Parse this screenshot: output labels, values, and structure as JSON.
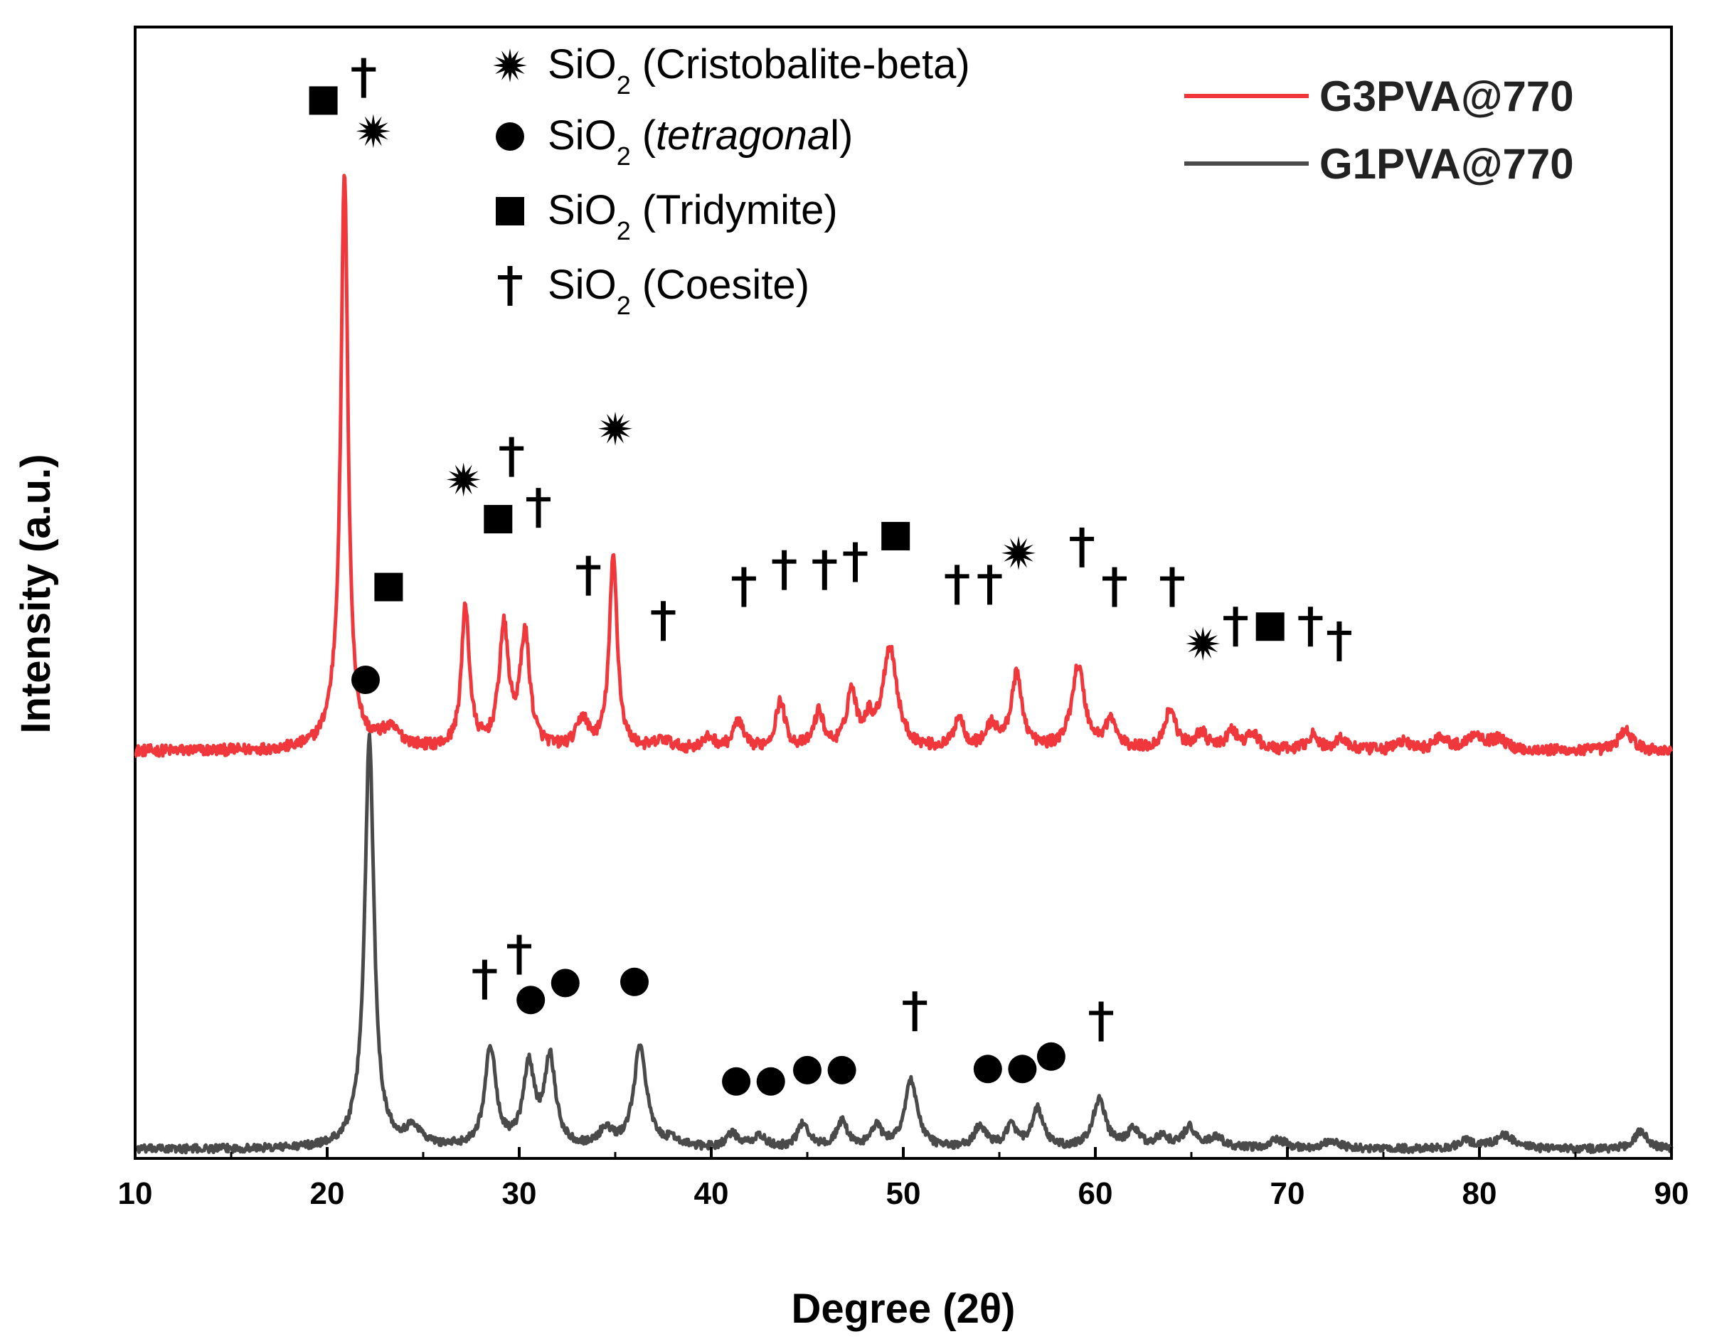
{
  "chart_data": {
    "type": "line",
    "xlabel": "Degree (2θ)",
    "ylabel": "Intensity (a.u.)",
    "xlim": [
      10,
      90
    ],
    "xticks": [
      10,
      20,
      30,
      40,
      50,
      60,
      70,
      80,
      90
    ],
    "ylim": [
      0,
      100
    ],
    "yticks_shown": false,
    "series": [
      {
        "name": "G3PVA@770",
        "color": "#f0383c",
        "baseline": 36.0,
        "noise": 0.5,
        "peaks": [
          {
            "x": 20.9,
            "h": 49.5,
            "w": 0.22
          },
          {
            "x": 20.5,
            "h": 2.5,
            "w": 0.6
          },
          {
            "x": 23.3,
            "h": 1.6,
            "w": 0.7
          },
          {
            "x": 27.2,
            "h": 12.5,
            "w": 0.25
          },
          {
            "x": 29.2,
            "h": 10.5,
            "w": 0.3
          },
          {
            "x": 30.3,
            "h": 10.0,
            "w": 0.3
          },
          {
            "x": 33.3,
            "h": 2.6,
            "w": 0.35
          },
          {
            "x": 34.9,
            "h": 17.0,
            "w": 0.25
          },
          {
            "x": 37.5,
            "h": 0.8,
            "w": 0.5
          },
          {
            "x": 39.9,
            "h": 1.0,
            "w": 0.4
          },
          {
            "x": 41.4,
            "h": 2.5,
            "w": 0.3
          },
          {
            "x": 43.6,
            "h": 4.2,
            "w": 0.3
          },
          {
            "x": 45.6,
            "h": 3.2,
            "w": 0.3
          },
          {
            "x": 47.3,
            "h": 5.0,
            "w": 0.3
          },
          {
            "x": 48.2,
            "h": 2.0,
            "w": 0.3
          },
          {
            "x": 49.3,
            "h": 9.0,
            "w": 0.45
          },
          {
            "x": 52.9,
            "h": 2.8,
            "w": 0.3
          },
          {
            "x": 54.6,
            "h": 2.0,
            "w": 0.35
          },
          {
            "x": 55.9,
            "h": 6.5,
            "w": 0.35
          },
          {
            "x": 59.1,
            "h": 7.4,
            "w": 0.4
          },
          {
            "x": 60.8,
            "h": 2.5,
            "w": 0.35
          },
          {
            "x": 63.9,
            "h": 3.6,
            "w": 0.35
          },
          {
            "x": 65.5,
            "h": 1.5,
            "w": 0.35
          },
          {
            "x": 67.1,
            "h": 1.6,
            "w": 0.35
          },
          {
            "x": 68.2,
            "h": 1.4,
            "w": 0.35
          },
          {
            "x": 71.3,
            "h": 1.3,
            "w": 0.35
          },
          {
            "x": 72.8,
            "h": 1.1,
            "w": 0.35
          },
          {
            "x": 76.0,
            "h": 0.8,
            "w": 0.4
          },
          {
            "x": 78.0,
            "h": 1.2,
            "w": 0.4
          },
          {
            "x": 79.8,
            "h": 1.4,
            "w": 0.5
          },
          {
            "x": 81.0,
            "h": 0.9,
            "w": 0.5
          },
          {
            "x": 87.6,
            "h": 1.9,
            "w": 0.4
          }
        ]
      },
      {
        "name": "G1PVA@770",
        "color": "#4a4a4a",
        "baseline": 0.8,
        "noise": 0.35,
        "peaks": [
          {
            "x": 22.2,
            "h": 34.5,
            "w": 0.28
          },
          {
            "x": 22.0,
            "h": 2.0,
            "w": 0.7
          },
          {
            "x": 24.5,
            "h": 1.6,
            "w": 0.5
          },
          {
            "x": 28.5,
            "h": 8.8,
            "w": 0.35
          },
          {
            "x": 30.5,
            "h": 7.0,
            "w": 0.35
          },
          {
            "x": 31.6,
            "h": 7.8,
            "w": 0.35
          },
          {
            "x": 34.5,
            "h": 1.5,
            "w": 0.4
          },
          {
            "x": 36.3,
            "h": 9.0,
            "w": 0.4
          },
          {
            "x": 38.0,
            "h": 0.6,
            "w": 0.5
          },
          {
            "x": 41.1,
            "h": 1.2,
            "w": 0.4
          },
          {
            "x": 42.5,
            "h": 1.0,
            "w": 0.4
          },
          {
            "x": 44.8,
            "h": 2.2,
            "w": 0.35
          },
          {
            "x": 46.8,
            "h": 2.3,
            "w": 0.35
          },
          {
            "x": 48.6,
            "h": 1.8,
            "w": 0.35
          },
          {
            "x": 50.4,
            "h": 6.0,
            "w": 0.4
          },
          {
            "x": 54.0,
            "h": 2.0,
            "w": 0.35
          },
          {
            "x": 55.6,
            "h": 1.9,
            "w": 0.35
          },
          {
            "x": 57.0,
            "h": 3.4,
            "w": 0.35
          },
          {
            "x": 60.2,
            "h": 4.3,
            "w": 0.4
          },
          {
            "x": 62.0,
            "h": 1.6,
            "w": 0.4
          },
          {
            "x": 63.5,
            "h": 1.0,
            "w": 0.4
          },
          {
            "x": 64.9,
            "h": 1.8,
            "w": 0.4
          },
          {
            "x": 66.3,
            "h": 1.0,
            "w": 0.4
          },
          {
            "x": 69.5,
            "h": 0.8,
            "w": 0.5
          },
          {
            "x": 72.3,
            "h": 0.7,
            "w": 0.5
          },
          {
            "x": 79.3,
            "h": 0.7,
            "w": 0.5
          },
          {
            "x": 81.3,
            "h": 1.2,
            "w": 0.6
          },
          {
            "x": 88.4,
            "h": 1.6,
            "w": 0.4
          }
        ]
      }
    ],
    "phases": [
      {
        "symbol": "star",
        "glyph": "✸",
        "label_main": "SiO",
        "label_sub": "2",
        "label_name": "(Cristobalite-beta)"
      },
      {
        "symbol": "circle",
        "glyph": "●",
        "label_main": "SiO",
        "label_sub": "2",
        "label_pre": "(",
        "label_italic": "tetragona",
        "label_post": "l)"
      },
      {
        "symbol": "square",
        "glyph": "■",
        "label_main": "SiO",
        "label_sub": "2",
        "label_name": "(Tridymite)"
      },
      {
        "symbol": "dagger",
        "glyph": "†",
        "label_main": "SiO",
        "label_sub": "2",
        "label_name": "(Coesite)"
      }
    ],
    "peak_markers": [
      {
        "symbol": "square",
        "x": 19.8,
        "y": 93.5
      },
      {
        "symbol": "dagger",
        "x": 21.9,
        "y": 95.5
      },
      {
        "symbol": "star",
        "x": 22.4,
        "y": 90.8
      },
      {
        "symbol": "square",
        "x": 23.2,
        "y": 50.5
      },
      {
        "symbol": "star",
        "x": 27.1,
        "y": 60.0
      },
      {
        "symbol": "dagger",
        "x": 29.6,
        "y": 62.0
      },
      {
        "symbol": "square",
        "x": 28.9,
        "y": 56.5
      },
      {
        "symbol": "dagger",
        "x": 31.0,
        "y": 57.5
      },
      {
        "symbol": "dagger",
        "x": 33.6,
        "y": 51.5
      },
      {
        "symbol": "star",
        "x": 35.0,
        "y": 64.5
      },
      {
        "symbol": "dagger",
        "x": 37.5,
        "y": 47.5
      },
      {
        "symbol": "dagger",
        "x": 41.7,
        "y": 50.5
      },
      {
        "symbol": "dagger",
        "x": 43.8,
        "y": 52.0
      },
      {
        "symbol": "dagger",
        "x": 45.9,
        "y": 52.0
      },
      {
        "symbol": "dagger",
        "x": 47.5,
        "y": 52.7
      },
      {
        "symbol": "square",
        "x": 49.6,
        "y": 55.0
      },
      {
        "symbol": "dagger",
        "x": 52.8,
        "y": 50.7
      },
      {
        "symbol": "dagger",
        "x": 54.5,
        "y": 50.7
      },
      {
        "symbol": "star",
        "x": 56.0,
        "y": 53.5
      },
      {
        "symbol": "dagger",
        "x": 59.3,
        "y": 54.0
      },
      {
        "symbol": "dagger",
        "x": 61.0,
        "y": 50.5
      },
      {
        "symbol": "dagger",
        "x": 64.0,
        "y": 50.5
      },
      {
        "symbol": "star",
        "x": 65.6,
        "y": 45.5
      },
      {
        "symbol": "dagger",
        "x": 67.3,
        "y": 47.0
      },
      {
        "symbol": "square",
        "x": 69.1,
        "y": 47.0
      },
      {
        "symbol": "dagger",
        "x": 71.2,
        "y": 47.0
      },
      {
        "symbol": "dagger",
        "x": 72.7,
        "y": 45.7
      },
      {
        "symbol": "circle",
        "x": 22.0,
        "y": 42.3
      },
      {
        "symbol": "dagger",
        "x": 28.2,
        "y": 15.8
      },
      {
        "symbol": "dagger",
        "x": 30.0,
        "y": 18.0
      },
      {
        "symbol": "circle",
        "x": 30.6,
        "y": 14.0
      },
      {
        "symbol": "circle",
        "x": 32.4,
        "y": 15.5
      },
      {
        "symbol": "circle",
        "x": 36.0,
        "y": 15.6
      },
      {
        "symbol": "circle",
        "x": 41.3,
        "y": 6.8
      },
      {
        "symbol": "circle",
        "x": 43.1,
        "y": 6.8
      },
      {
        "symbol": "circle",
        "x": 45.0,
        "y": 7.8
      },
      {
        "symbol": "circle",
        "x": 46.8,
        "y": 7.8
      },
      {
        "symbol": "dagger",
        "x": 50.6,
        "y": 13.0
      },
      {
        "symbol": "circle",
        "x": 54.4,
        "y": 7.9
      },
      {
        "symbol": "circle",
        "x": 56.2,
        "y": 7.9
      },
      {
        "symbol": "circle",
        "x": 57.7,
        "y": 9.0
      },
      {
        "symbol": "dagger",
        "x": 60.3,
        "y": 12.1
      }
    ]
  }
}
